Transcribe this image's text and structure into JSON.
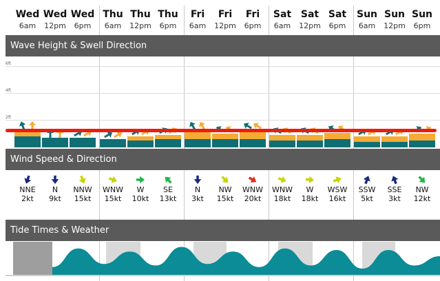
{
  "columns": [
    {
      "day": "Wed",
      "hour": "6am"
    },
    {
      "day": "Wed",
      "hour": "12pm"
    },
    {
      "day": "Wed",
      "hour": "6pm"
    },
    {
      "day": "Thu",
      "hour": "6am"
    },
    {
      "day": "Thu",
      "hour": "12pm"
    },
    {
      "day": "Thu",
      "hour": "6pm"
    },
    {
      "day": "Fri",
      "hour": "6am"
    },
    {
      "day": "Fri",
      "hour": "12pm"
    },
    {
      "day": "Fri",
      "hour": "6pm"
    },
    {
      "day": "Sat",
      "hour": "6am"
    },
    {
      "day": "Sat",
      "hour": "12pm"
    },
    {
      "day": "Sat",
      "hour": "6pm"
    },
    {
      "day": "Sun",
      "hour": "6am"
    },
    {
      "day": "Sun",
      "hour": "12pm"
    },
    {
      "day": "Sun",
      "hour": "6pm"
    }
  ],
  "sections": {
    "wave": "Wave Height & Swell Direction",
    "wind": "Wind Speed & Direction",
    "tide": "Tide Times & Weather"
  },
  "wave_axis": {
    "ticks": [
      "6ft",
      "4ft",
      "2ft"
    ]
  },
  "wave_data": {
    "unit": "ft",
    "total_height": [
      1.3,
      0.7,
      0.7,
      0.6,
      0.8,
      0.9,
      1.3,
      1.0,
      1.3,
      0.9,
      0.9,
      1.1,
      0.8,
      0.8,
      1.0
    ],
    "swell_height": [
      0.8,
      0.7,
      0.7,
      0.6,
      0.5,
      0.6,
      0.6,
      0.6,
      0.6,
      0.5,
      0.5,
      0.6,
      0.4,
      0.4,
      0.5
    ],
    "colors": {
      "swell": "#0f6f75",
      "wind_wave": "#f5ab34",
      "marker": "#ee1c0d"
    }
  },
  "wind": [
    {
      "dir": "NNE",
      "speed": "2kt",
      "color": "#1b2a7a",
      "rotate": 200
    },
    {
      "dir": "N",
      "speed": "9kt",
      "color": "#1b2a7a",
      "rotate": 180
    },
    {
      "dir": "NNW",
      "speed": "15kt",
      "color": "#c8d400",
      "rotate": 160
    },
    {
      "dir": "WNW",
      "speed": "15kt",
      "color": "#c8d400",
      "rotate": 110
    },
    {
      "dir": "W",
      "speed": "10kt",
      "color": "#1fb84a",
      "rotate": 90
    },
    {
      "dir": "SE",
      "speed": "13kt",
      "color": "#1fb84a",
      "rotate": 315
    },
    {
      "dir": "N",
      "speed": "3kt",
      "color": "#1b2a7a",
      "rotate": 180
    },
    {
      "dir": "NW",
      "speed": "15kt",
      "color": "#c8d400",
      "rotate": 135
    },
    {
      "dir": "WNW",
      "speed": "20kt",
      "color": "#e52e1c",
      "rotate": 120
    },
    {
      "dir": "WNW",
      "speed": "18kt",
      "color": "#c8d400",
      "rotate": 110
    },
    {
      "dir": "W",
      "speed": "18kt",
      "color": "#c8d400",
      "rotate": 95
    },
    {
      "dir": "WSW",
      "speed": "16kt",
      "color": "#c8d400",
      "rotate": 70
    },
    {
      "dir": "SSW",
      "speed": "5kt",
      "color": "#1b2a7a",
      "rotate": 20
    },
    {
      "dir": "SSE",
      "speed": "3kt",
      "color": "#1b2a7a",
      "rotate": 340
    },
    {
      "dir": "NW",
      "speed": "12kt",
      "color": "#1fb84a",
      "rotate": 135
    }
  ],
  "tide": {
    "levels": [
      0.25,
      0.85,
      0.35,
      0.75,
      0.3,
      0.9,
      0.35,
      0.75,
      0.25,
      0.85,
      0.3,
      0.8,
      0.2,
      0.8,
      0.3,
      0.6
    ],
    "colors": {
      "water": "#0b8c97",
      "water_dark": "#0b6f77",
      "night": "#d9d9d9",
      "past": "#9e9e9e"
    }
  }
}
